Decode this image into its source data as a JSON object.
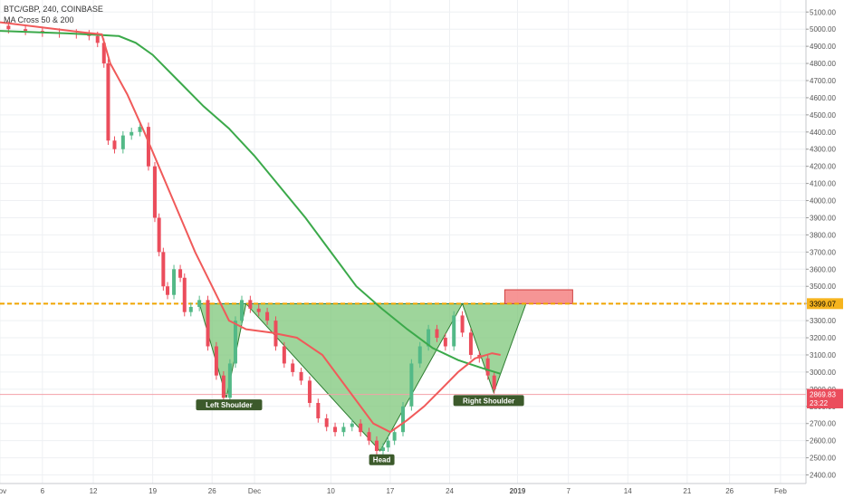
{
  "legend": {
    "symbol_line": "BTC/GBP, 240, COINBASE",
    "indicator_line": "MA Cross 50 & 200"
  },
  "colors": {
    "candle_up": "#53b987",
    "candle_down": "#eb4d5c",
    "ma_fast": "#f05a5a",
    "ma_slow": "#3ba94a",
    "pattern_fill": "#7ec77a",
    "neckline": "#f0a500",
    "target_box": "#f58a8a",
    "price_tag": "#eb4d5c",
    "label_bg": "#3c5a2b"
  },
  "chart_data": {
    "type": "candlestick",
    "y_axis": {
      "ticks": [
        "5100.00",
        "5000.00",
        "4900.00",
        "4800.00",
        "4700.00",
        "4600.00",
        "4500.00",
        "4400.00",
        "4300.00",
        "4200.00",
        "4100.00",
        "4000.00",
        "3900.00",
        "3800.00",
        "3700.00",
        "3600.00",
        "3500.00",
        "3400.00",
        "3300.00",
        "3200.00",
        "3100.00",
        "3000.00",
        "2900.00",
        "2800.00",
        "2700.00",
        "2600.00",
        "2500.00",
        "2400.00"
      ],
      "tick_values": [
        5100,
        5000,
        4900,
        4800,
        4700,
        4600,
        4500,
        4400,
        4300,
        4200,
        4100,
        4000,
        3900,
        3800,
        3700,
        3600,
        3500,
        3400,
        3300,
        3200,
        3100,
        3000,
        2900,
        2800,
        2700,
        2600,
        2500,
        2400
      ],
      "ylim": [
        2350,
        5170
      ]
    },
    "x_axis": {
      "ticks": [
        "Nov",
        "6",
        "12",
        "19",
        "26",
        "Dec",
        "10",
        "17",
        "24",
        "2019",
        "7",
        "14",
        "21",
        "26",
        "Feb"
      ],
      "tick_days": [
        0,
        5,
        11,
        18,
        25,
        30,
        39,
        46,
        53,
        61,
        67,
        74,
        81,
        86,
        92
      ],
      "xlim": [
        0,
        95
      ]
    },
    "grid": true,
    "price_series": [
      [
        0,
        5020
      ],
      [
        2,
        5000
      ],
      [
        4,
        4990
      ],
      [
        6,
        4980
      ],
      [
        8,
        4975
      ],
      [
        10,
        4970
      ],
      [
        11,
        4960
      ],
      [
        12,
        4920
      ],
      [
        12.5,
        4800
      ],
      [
        13,
        4350
      ],
      [
        14,
        4300
      ],
      [
        15,
        4380
      ],
      [
        16,
        4400
      ],
      [
        17,
        4430
      ],
      [
        18,
        4200
      ],
      [
        18.5,
        3900
      ],
      [
        19,
        3700
      ],
      [
        19.5,
        3500
      ],
      [
        20,
        3450
      ],
      [
        21,
        3600
      ],
      [
        21.5,
        3550
      ],
      [
        22,
        3350
      ],
      [
        23,
        3380
      ],
      [
        24,
        3420
      ],
      [
        25,
        3150
      ],
      [
        26,
        2980
      ],
      [
        26.7,
        2850
      ],
      [
        27.5,
        3050
      ],
      [
        28,
        3300
      ],
      [
        29,
        3420
      ],
      [
        30,
        3370
      ],
      [
        31,
        3350
      ],
      [
        32,
        3300
      ],
      [
        33,
        3150
      ],
      [
        34,
        3050
      ],
      [
        35,
        3000
      ],
      [
        36,
        2950
      ],
      [
        37,
        2820
      ],
      [
        38,
        2730
      ],
      [
        39,
        2680
      ],
      [
        40,
        2650
      ],
      [
        41,
        2680
      ],
      [
        42,
        2700
      ],
      [
        43,
        2650
      ],
      [
        44,
        2600
      ],
      [
        44.8,
        2540
      ],
      [
        45.5,
        2560
      ],
      [
        46,
        2600
      ],
      [
        47,
        2650
      ],
      [
        48,
        2800
      ],
      [
        49,
        3050
      ],
      [
        50,
        3150
      ],
      [
        51,
        3250
      ],
      [
        52,
        3200
      ],
      [
        53,
        3150
      ],
      [
        54,
        3330
      ],
      [
        55,
        3230
      ],
      [
        56,
        3100
      ],
      [
        57,
        3080
      ],
      [
        58,
        2980
      ],
      [
        58.5,
        2900
      ]
    ],
    "series": [
      {
        "name": "MA 50",
        "points": [
          [
            0,
            5040
          ],
          [
            10,
            4980
          ],
          [
            12,
            4970
          ],
          [
            13,
            4800
          ],
          [
            15,
            4620
          ],
          [
            17,
            4400
          ],
          [
            20,
            4050
          ],
          [
            23,
            3700
          ],
          [
            25,
            3500
          ],
          [
            27,
            3300
          ],
          [
            29,
            3250
          ],
          [
            32,
            3230
          ],
          [
            35,
            3200
          ],
          [
            38,
            3100
          ],
          [
            41,
            2900
          ],
          [
            44,
            2700
          ],
          [
            46,
            2650
          ],
          [
            48,
            2720
          ],
          [
            50,
            2800
          ],
          [
            52,
            2900
          ],
          [
            54,
            3000
          ],
          [
            56,
            3080
          ],
          [
            58,
            3110
          ],
          [
            59,
            3100
          ]
        ]
      },
      {
        "name": "MA 200",
        "points": [
          [
            0,
            4990
          ],
          [
            8,
            4975
          ],
          [
            12,
            4965
          ],
          [
            14,
            4960
          ],
          [
            16,
            4920
          ],
          [
            18,
            4850
          ],
          [
            21,
            4700
          ],
          [
            24,
            4550
          ],
          [
            27,
            4420
          ],
          [
            30,
            4260
          ],
          [
            33,
            4080
          ],
          [
            36,
            3900
          ],
          [
            39,
            3700
          ],
          [
            42,
            3500
          ],
          [
            45,
            3370
          ],
          [
            48,
            3250
          ],
          [
            51,
            3140
          ],
          [
            54,
            3070
          ],
          [
            57,
            3020
          ],
          [
            59,
            2990
          ]
        ]
      }
    ],
    "neckline": 3399.07,
    "pattern": {
      "left_shoulder": [
        [
          23.5,
          3399
        ],
        [
          26.7,
          2850
        ],
        [
          29,
          3399
        ]
      ],
      "head": [
        [
          29,
          3399
        ],
        [
          44.8,
          2540
        ],
        [
          54.5,
          3399
        ]
      ],
      "right_shoulder": [
        [
          54.5,
          3399
        ],
        [
          58.2,
          2880
        ],
        [
          62,
          3399
        ]
      ]
    },
    "target_box": {
      "x0": 59.5,
      "x1": 67.5,
      "y0": 3399,
      "y1": 3480
    },
    "annotations": [
      {
        "label": "Left Shoulder",
        "x": 27,
        "y": 2830
      },
      {
        "label": "Head",
        "x": 45,
        "y": 2510
      },
      {
        "label": "Right Shoulder",
        "x": 57.6,
        "y": 2855
      }
    ],
    "price_tags": [
      {
        "text": "3399.07",
        "value": 3399.07,
        "style": "neckline"
      },
      {
        "text": "2869.83",
        "value": 2869.83,
        "style": "last"
      },
      {
        "text": "23:22",
        "value": 2820,
        "style": "timer"
      }
    ],
    "last_price_line": 2869.83
  }
}
